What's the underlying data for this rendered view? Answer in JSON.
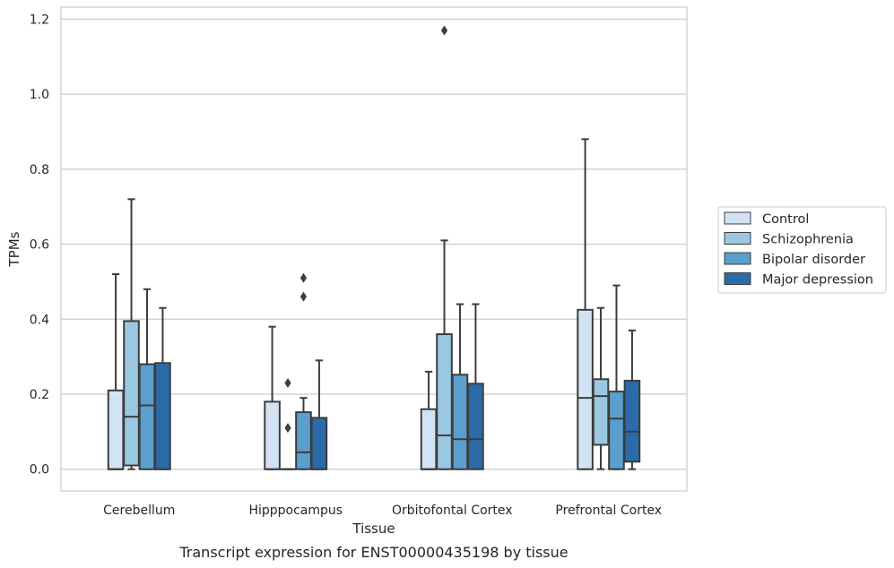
{
  "chart_data": {
    "type": "boxplot",
    "title": "",
    "caption": "Transcript expression for ENST00000435198 by tissue",
    "xlabel": "Tissue",
    "ylabel": "TPMs",
    "ylim": [
      -0.058,
      1.232
    ],
    "yticks": [
      "0.0",
      "0.2",
      "0.4",
      "0.6",
      "0.8",
      "1.0",
      "1.2"
    ],
    "grid": true,
    "legend_position": "right",
    "categories": [
      "Cerebellum",
      "Hipppocampus",
      "Orbitofontal Cortex",
      "Prefrontal Cortex"
    ],
    "series": [
      {
        "name": "Control",
        "color": "#d2e3f3",
        "boxes": [
          {
            "whislo": 0.0,
            "q1": 0.0,
            "med": 0.0,
            "q3": 0.21,
            "whishi": 0.52,
            "fliers": []
          },
          {
            "whislo": 0.0,
            "q1": 0.0,
            "med": 0.0,
            "q3": 0.18,
            "whishi": 0.38,
            "fliers": []
          },
          {
            "whislo": 0.0,
            "q1": 0.0,
            "med": 0.0,
            "q3": 0.16,
            "whishi": 0.26,
            "fliers": []
          },
          {
            "whislo": 0.0,
            "q1": 0.0,
            "med": 0.19,
            "q3": 0.425,
            "whishi": 0.88,
            "fliers": []
          }
        ]
      },
      {
        "name": "Schizophrenia",
        "color": "#9ac8e0",
        "boxes": [
          {
            "whislo": 0.0,
            "q1": 0.01,
            "med": 0.14,
            "q3": 0.395,
            "whishi": 0.72,
            "fliers": []
          },
          {
            "whislo": 0.0,
            "q1": 0.0,
            "med": 0.0,
            "q3": 0.0,
            "whishi": 0.0,
            "fliers": [
              0.11,
              0.23
            ]
          },
          {
            "whislo": 0.0,
            "q1": 0.0,
            "med": 0.09,
            "q3": 0.36,
            "whishi": 0.61,
            "fliers": [
              1.17
            ]
          },
          {
            "whislo": 0.0,
            "q1": 0.065,
            "med": 0.195,
            "q3": 0.24,
            "whishi": 0.43,
            "fliers": []
          }
        ]
      },
      {
        "name": "Bipolar disorder",
        "color": "#5a9fcd",
        "boxes": [
          {
            "whislo": 0.0,
            "q1": 0.0,
            "med": 0.17,
            "q3": 0.28,
            "whishi": 0.48,
            "fliers": []
          },
          {
            "whislo": 0.0,
            "q1": 0.0,
            "med": 0.045,
            "q3": 0.152,
            "whishi": 0.19,
            "fliers": [
              0.46,
              0.51
            ]
          },
          {
            "whislo": 0.0,
            "q1": 0.0,
            "med": 0.08,
            "q3": 0.252,
            "whishi": 0.44,
            "fliers": []
          },
          {
            "whislo": 0.0,
            "q1": 0.0,
            "med": 0.135,
            "q3": 0.207,
            "whishi": 0.49,
            "fliers": []
          }
        ]
      },
      {
        "name": "Major depression",
        "color": "#2b6ba9",
        "boxes": [
          {
            "whislo": 0.0,
            "q1": 0.0,
            "med": 0.0,
            "q3": 0.283,
            "whishi": 0.43,
            "fliers": []
          },
          {
            "whislo": 0.0,
            "q1": 0.0,
            "med": 0.0,
            "q3": 0.137,
            "whishi": 0.29,
            "fliers": []
          },
          {
            "whislo": 0.0,
            "q1": 0.0,
            "med": 0.08,
            "q3": 0.228,
            "whishi": 0.44,
            "fliers": []
          },
          {
            "whislo": 0.0,
            "q1": 0.02,
            "med": 0.1,
            "q3": 0.236,
            "whishi": 0.37,
            "fliers": []
          }
        ]
      }
    ]
  }
}
